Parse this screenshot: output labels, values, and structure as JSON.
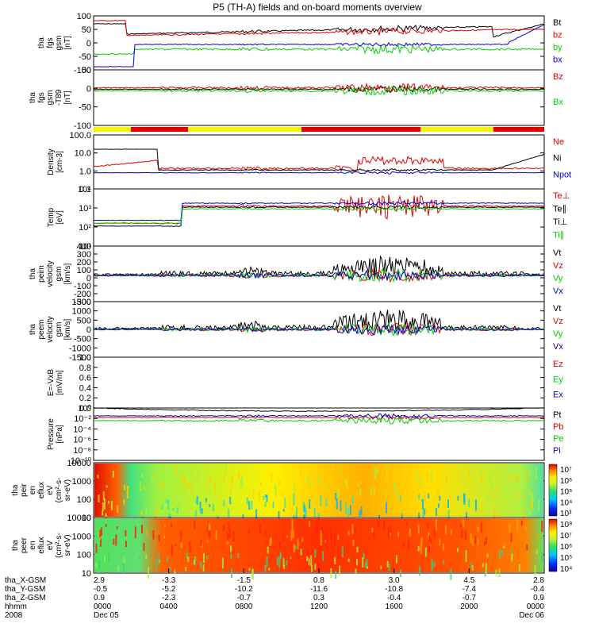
{
  "title": "P5 (TH-A) fields and on-board moments overview",
  "colors": {
    "black": "#000000",
    "red": "#e00000",
    "green": "#00d000",
    "blue": "#0000d0",
    "yellow": "#f5f500"
  },
  "chart_data": [
    {
      "type": "line",
      "ylabel": [
        "tha",
        "fgs",
        "gsm",
        "[nT]"
      ],
      "ylim": [
        -100,
        100
      ],
      "yticks": [
        "100",
        "50",
        "0",
        "-50",
        "-100"
      ],
      "legend": [
        {
          "name": "Bt",
          "color": "#000000"
        },
        {
          "name": "bz",
          "color": "#e00000"
        },
        {
          "name": "by",
          "color": "#00d000"
        },
        {
          "name": "bx",
          "color": "#0000d0"
        }
      ]
    },
    {
      "type": "line",
      "ylabel": [
        "tha",
        "fgs",
        "gsm",
        "-T89",
        "[nT]"
      ],
      "ylim": [
        -120,
        50
      ],
      "yticks": [
        "50",
        "0",
        "-50",
        "-100"
      ],
      "legend": [
        {
          "name": "Bz",
          "color": "#e00000"
        },
        {
          "name": "Bx",
          "color": "#00d000"
        }
      ],
      "status_bar_colors": [
        "yellow",
        "red",
        "yellow",
        "red",
        "yellow",
        "red"
      ]
    },
    {
      "type": "line",
      "ylabel": [
        "Density",
        "[cm-3]"
      ],
      "yscale": "log",
      "yticks": [
        "100.0",
        "10.0",
        "1.0",
        "0.1"
      ],
      "legend": [
        {
          "name": "Ne",
          "color": "#e00000"
        },
        {
          "name": "Ni",
          "color": "#000000"
        },
        {
          "name": "Npot",
          "color": "#0000d0"
        }
      ]
    },
    {
      "type": "line",
      "ylabel": [
        "Temp",
        "[eV]"
      ],
      "yscale": "log",
      "yticks": [
        "10⁴",
        "10³",
        "10²",
        "10¹"
      ],
      "legend": [
        {
          "name": "Te⊥",
          "color": "#e00000"
        },
        {
          "name": "Te∥",
          "color": "#000000"
        },
        {
          "name": "Ti⊥",
          "color": "#000000"
        },
        {
          "name": "Ti∥",
          "color": "#00d000"
        }
      ]
    },
    {
      "type": "line",
      "ylabel": [
        "tha",
        "peim",
        "velocity",
        "gsm",
        "[km/s]"
      ],
      "ylim": [
        -300,
        400
      ],
      "yticks": [
        "400",
        "300",
        "200",
        "100",
        "0",
        "-100",
        "-200",
        "-300"
      ],
      "legend": [
        {
          "name": "Vt",
          "color": "#000000"
        },
        {
          "name": "Vz",
          "color": "#e00000"
        },
        {
          "name": "Vy",
          "color": "#00d000"
        },
        {
          "name": "Vx",
          "color": "#0000d0"
        }
      ]
    },
    {
      "type": "line",
      "ylabel": [
        "tha",
        "peem",
        "velocity",
        "gsm",
        "[km/s]"
      ],
      "ylim": [
        -1500,
        1500
      ],
      "yticks": [
        "1500",
        "1000",
        "500",
        "0",
        "-500",
        "-1000",
        "-1500"
      ],
      "legend": [
        {
          "name": "Vt",
          "color": "#000000"
        },
        {
          "name": "Vz",
          "color": "#e00000"
        },
        {
          "name": "Vy",
          "color": "#00d000"
        },
        {
          "name": "Vx",
          "color": "#0000d0"
        }
      ]
    },
    {
      "type": "line",
      "ylabel": [
        "E=-VxB",
        "[mV/m]"
      ],
      "ylim": [
        0,
        1
      ],
      "yticks": [
        "1.0",
        "0.8",
        "0.6",
        "0.4",
        "0.2",
        "0.0"
      ],
      "legend": [
        {
          "name": "Ez",
          "color": "#e00000"
        },
        {
          "name": "Ey",
          "color": "#00d000"
        },
        {
          "name": "Ex",
          "color": "#0000d0"
        }
      ]
    },
    {
      "type": "line",
      "ylabel": [
        "Pressure",
        "[nPa]"
      ],
      "yscale": "log",
      "yticks": [
        "10⁰",
        "10⁻²",
        "10⁻⁴",
        "10⁻⁶",
        "10⁻⁸",
        "10⁻¹⁰"
      ],
      "legend": [
        {
          "name": "Pt",
          "color": "#000000"
        },
        {
          "name": "Pb",
          "color": "#e00000"
        },
        {
          "name": "Pe",
          "color": "#00d000"
        },
        {
          "name": "Pi",
          "color": "#0000d0"
        }
      ]
    },
    {
      "type": "heatmap",
      "ylabel": [
        "tha",
        "peir",
        "en",
        "eflux",
        "eV",
        "(cm²-s-",
        "sr-eV)"
      ],
      "yscale": "log",
      "yticks": [
        "10000",
        "1000",
        "100",
        "10"
      ],
      "colorbar_ticks": [
        "10⁷",
        "10⁶",
        "10⁵",
        "10⁴",
        "10³"
      ]
    },
    {
      "type": "heatmap",
      "ylabel": [
        "tha",
        "peer",
        "en",
        "eflux",
        "eV",
        "(cm²-s-",
        "sr-eV)"
      ],
      "yscale": "log",
      "yticks": [
        "10000",
        "1000",
        "100",
        "10"
      ],
      "colorbar_ticks": [
        "10⁸",
        "10⁷",
        "10⁶",
        "10⁵",
        "10⁴"
      ]
    }
  ],
  "x_axis": {
    "row_labels": [
      "tha_X-GSM",
      "tha_Y-GSM",
      "tha_Z-GSM",
      "hhmm",
      "2008"
    ],
    "columns": [
      {
        "values": [
          "2.9",
          "-0.5",
          "0.9",
          "0000",
          "Dec 05"
        ]
      },
      {
        "values": [
          "-3.3",
          "-5.2",
          "-2.3",
          "0400",
          ""
        ]
      },
      {
        "values": [
          "-1.5",
          "-10.2",
          "-0.7",
          "0800",
          ""
        ]
      },
      {
        "values": [
          "0.8",
          "-11.6",
          "0.3",
          "1200",
          ""
        ]
      },
      {
        "values": [
          "3.0",
          "-10.8",
          "-0.4",
          "1600",
          ""
        ]
      },
      {
        "values": [
          "4.5",
          "-7.4",
          "-0.7",
          "2000",
          ""
        ]
      },
      {
        "values": [
          "2.8",
          "-0.4",
          "0.9",
          "0000",
          "Dec 06"
        ]
      }
    ]
  }
}
